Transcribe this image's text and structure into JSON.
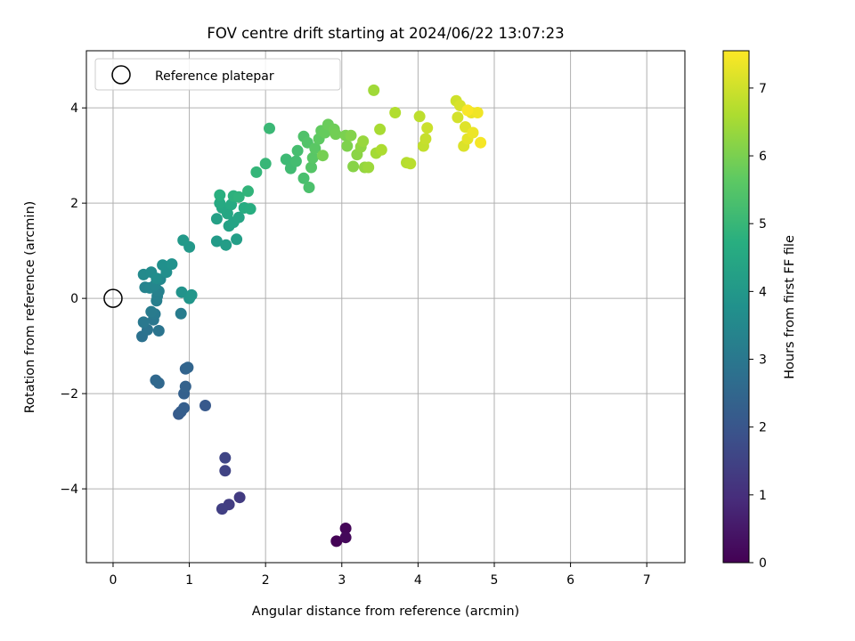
{
  "chart_data": {
    "type": "scatter",
    "title": "FOV centre drift starting at 2024/06/22 13:07:23",
    "xlabel": "Angular distance from reference (arcmin)",
    "ylabel": "Rotation from reference (arcmin)",
    "xlim": [
      -0.35,
      7.5
    ],
    "ylim": [
      -5.55,
      5.2
    ],
    "x_ticks": [
      0,
      1,
      2,
      3,
      4,
      5,
      6,
      7
    ],
    "x_tick_labels": [
      "0",
      "1",
      "2",
      "3",
      "4",
      "5",
      "6",
      "7"
    ],
    "y_ticks": [
      -4,
      -2,
      0,
      2,
      4
    ],
    "y_tick_labels": [
      "−4",
      "−2",
      "0",
      "2",
      "4"
    ],
    "grid": true,
    "legend": {
      "placement": "top-left",
      "entries": [
        {
          "label": "Reference platepar",
          "marker": "open-circle"
        }
      ]
    },
    "reference_point": {
      "x": 0,
      "y": 0
    },
    "colorbar": {
      "label": "Hours from first FF file",
      "range": [
        0,
        7.55
      ],
      "ticks": [
        0,
        1,
        2,
        3,
        4,
        5,
        6,
        7
      ],
      "tick_labels": [
        "0",
        "1",
        "2",
        "3",
        "4",
        "5",
        "6",
        "7"
      ],
      "colormap": "viridis"
    },
    "points": [
      [
        2.93,
        -5.1,
        0.05
      ],
      [
        3.05,
        -4.83,
        0.1
      ],
      [
        3.05,
        -5.02,
        0.15
      ],
      [
        1.66,
        -4.18,
        1.3
      ],
      [
        1.52,
        -4.33,
        1.35
      ],
      [
        1.43,
        -4.42,
        1.4
      ],
      [
        1.47,
        -3.62,
        1.5
      ],
      [
        1.47,
        -3.35,
        1.55
      ],
      [
        1.21,
        -2.25,
        2.1
      ],
      [
        0.86,
        -2.43,
        2.15
      ],
      [
        0.89,
        -2.38,
        2.2
      ],
      [
        0.93,
        -2.3,
        2.25
      ],
      [
        0.93,
        -2.0,
        2.3
      ],
      [
        0.95,
        -1.85,
        2.35
      ],
      [
        0.95,
        -1.48,
        2.4
      ],
      [
        0.98,
        -1.45,
        2.45
      ],
      [
        0.6,
        -1.78,
        2.5
      ],
      [
        0.56,
        -1.72,
        2.55
      ],
      [
        0.38,
        -0.8,
        2.8
      ],
      [
        0.45,
        -0.66,
        2.85
      ],
      [
        0.6,
        -0.68,
        2.9
      ],
      [
        0.53,
        -0.45,
        2.95
      ],
      [
        0.4,
        -0.5,
        3.0
      ],
      [
        0.55,
        -0.33,
        3.05
      ],
      [
        0.5,
        -0.28,
        3.1
      ],
      [
        0.89,
        -0.32,
        3.15
      ],
      [
        0.57,
        -0.05,
        3.2
      ],
      [
        0.58,
        0.05,
        3.25
      ],
      [
        0.6,
        0.15,
        3.3
      ],
      [
        0.42,
        0.23,
        3.35
      ],
      [
        0.48,
        0.22,
        3.4
      ],
      [
        0.55,
        0.28,
        3.45
      ],
      [
        0.62,
        0.4,
        3.5
      ],
      [
        0.4,
        0.5,
        3.55
      ],
      [
        0.5,
        0.55,
        3.6
      ],
      [
        0.57,
        0.42,
        3.65
      ],
      [
        0.7,
        0.55,
        3.7
      ],
      [
        0.65,
        0.7,
        3.75
      ],
      [
        0.77,
        0.72,
        3.8
      ],
      [
        0.9,
        0.13,
        3.85
      ],
      [
        1.0,
        0.0,
        3.9
      ],
      [
        1.03,
        0.07,
        3.95
      ],
      [
        1.0,
        1.08,
        4.0
      ],
      [
        0.92,
        1.22,
        4.05
      ],
      [
        1.36,
        1.2,
        4.1
      ],
      [
        1.48,
        1.12,
        4.15
      ],
      [
        1.62,
        1.24,
        4.2
      ],
      [
        1.36,
        1.67,
        4.25
      ],
      [
        1.52,
        1.52,
        4.3
      ],
      [
        1.58,
        1.6,
        4.35
      ],
      [
        1.65,
        1.7,
        4.4
      ],
      [
        1.5,
        1.78,
        4.45
      ],
      [
        1.43,
        1.9,
        4.5
      ],
      [
        1.4,
        2.0,
        4.55
      ],
      [
        1.55,
        1.97,
        4.6
      ],
      [
        1.72,
        1.9,
        4.65
      ],
      [
        1.8,
        1.88,
        4.7
      ],
      [
        1.4,
        2.17,
        4.75
      ],
      [
        1.58,
        2.15,
        4.8
      ],
      [
        1.65,
        2.13,
        4.85
      ],
      [
        1.77,
        2.25,
        4.9
      ],
      [
        1.88,
        2.65,
        4.95
      ],
      [
        2.0,
        2.83,
        5.0
      ],
      [
        2.05,
        3.57,
        5.05
      ],
      [
        2.27,
        2.92,
        5.1
      ],
      [
        2.33,
        2.73,
        5.15
      ],
      [
        2.4,
        2.88,
        5.2
      ],
      [
        2.42,
        3.1,
        5.25
      ],
      [
        2.5,
        2.52,
        5.3
      ],
      [
        2.57,
        2.33,
        5.35
      ],
      [
        2.5,
        3.4,
        5.4
      ],
      [
        2.55,
        3.27,
        5.45
      ],
      [
        2.6,
        2.75,
        5.5
      ],
      [
        2.62,
        2.95,
        5.55
      ],
      [
        2.65,
        3.15,
        5.6
      ],
      [
        2.7,
        3.35,
        5.65
      ],
      [
        2.73,
        3.52,
        5.7
      ],
      [
        2.78,
        3.48,
        5.75
      ],
      [
        2.82,
        3.65,
        5.8
      ],
      [
        2.9,
        3.55,
        5.85
      ],
      [
        2.92,
        3.45,
        5.9
      ],
      [
        2.75,
        3.0,
        5.95
      ],
      [
        3.05,
        3.42,
        6.0
      ],
      [
        3.07,
        3.2,
        6.05
      ],
      [
        3.12,
        3.42,
        6.1
      ],
      [
        3.15,
        2.77,
        6.15
      ],
      [
        3.2,
        3.02,
        6.2
      ],
      [
        3.25,
        3.18,
        6.25
      ],
      [
        3.3,
        2.75,
        6.3
      ],
      [
        3.28,
        3.3,
        6.35
      ],
      [
        3.35,
        2.75,
        6.4
      ],
      [
        3.42,
        4.37,
        6.45
      ],
      [
        3.45,
        3.05,
        6.5
      ],
      [
        3.5,
        3.55,
        6.55
      ],
      [
        3.52,
        3.12,
        6.6
      ],
      [
        3.7,
        3.9,
        6.65
      ],
      [
        3.85,
        2.85,
        6.7
      ],
      [
        3.9,
        2.83,
        6.75
      ],
      [
        4.02,
        3.82,
        6.8
      ],
      [
        4.07,
        3.2,
        6.85
      ],
      [
        4.1,
        3.35,
        6.9
      ],
      [
        4.12,
        3.58,
        6.95
      ],
      [
        4.5,
        4.15,
        7.0
      ],
      [
        4.52,
        3.8,
        7.05
      ],
      [
        4.55,
        4.05,
        7.1
      ],
      [
        4.6,
        3.2,
        7.15
      ],
      [
        4.62,
        3.6,
        7.2
      ],
      [
        4.65,
        3.35,
        7.25
      ],
      [
        4.7,
        3.9,
        7.3
      ],
      [
        4.72,
        3.48,
        7.35
      ],
      [
        4.78,
        3.9,
        7.4
      ],
      [
        4.82,
        3.27,
        7.45
      ],
      [
        4.65,
        3.95,
        7.5
      ]
    ]
  }
}
